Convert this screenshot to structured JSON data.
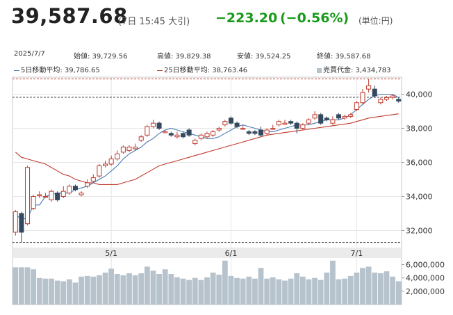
{
  "header": {
    "price": "39,587.68",
    "meta": "(7日 15:45 大引)",
    "change": "−223.20",
    "change_pct": "(−0.56%)",
    "unit": "(単位:円)"
  },
  "stats": {
    "date": "2025/7/7",
    "open": "始値: 39,729.56",
    "high": "高値: 39,829.38",
    "low": "安値: 39,524.25",
    "close": "終値: 39,587.68"
  },
  "legend": {
    "ma5": "5日移動平均: 39,786.65",
    "ma25": "25日移動平均: 38,763.46",
    "volume": "売買代金: 3,434,783"
  },
  "colors": {
    "up": "#c0392b",
    "down": "#34495e",
    "ma5": "#4a7ab5",
    "ma25": "#c0392b",
    "volume": "#b6c2cc",
    "change": "#1a9a1a"
  },
  "chart_data": {
    "type": "candlestick",
    "ylim": [
      31000,
      41000
    ],
    "yticks": [
      "32,000",
      "34,000",
      "36,000",
      "38,000",
      "40,000"
    ],
    "ytick_values": [
      32000,
      34000,
      36000,
      38000,
      40000
    ],
    "xticks": [
      {
        "label": "5/1",
        "index": 16
      },
      {
        "label": "6/1",
        "index": 36
      },
      {
        "label": "7/1",
        "index": 57
      }
    ],
    "reference_lines": [
      40900,
      39820,
      31300
    ],
    "candles": [
      [
        31900,
        33100,
        31700,
        33200
      ],
      [
        33000,
        31900,
        31300,
        33100
      ],
      [
        32400,
        35700,
        32300,
        35800
      ],
      [
        33300,
        34000,
        33200,
        34100
      ],
      [
        34100,
        34100,
        33900,
        34300
      ],
      [
        34000,
        34000,
        33900,
        34200
      ],
      [
        33800,
        34300,
        33700,
        34400
      ],
      [
        34200,
        33800,
        33700,
        34300
      ],
      [
        34000,
        34300,
        33900,
        34600
      ],
      [
        34200,
        34600,
        34100,
        34700
      ],
      [
        34600,
        34400,
        34300,
        34700
      ],
      [
        34100,
        34200,
        34000,
        34300
      ],
      [
        34600,
        34800,
        34500,
        35000
      ],
      [
        34900,
        35100,
        34800,
        35300
      ],
      [
        35200,
        35800,
        35100,
        35900
      ],
      [
        35800,
        35900,
        35700,
        36100
      ],
      [
        35900,
        36200,
        35800,
        36400
      ],
      [
        36200,
        36500,
        36100,
        36700
      ],
      [
        36600,
        36900,
        36500,
        37000
      ],
      [
        36700,
        36900,
        36600,
        37000
      ],
      [
        36800,
        36900,
        36700,
        37100
      ],
      [
        37300,
        37500,
        37200,
        37600
      ],
      [
        37600,
        38100,
        37500,
        38200
      ],
      [
        38100,
        38300,
        38000,
        38500
      ],
      [
        38300,
        38000,
        37900,
        38400
      ],
      [
        37800,
        37800,
        37700,
        37900
      ],
      [
        37700,
        37600,
        37500,
        37800
      ],
      [
        37500,
        37600,
        37400,
        37800
      ],
      [
        37700,
        37500,
        37400,
        37800
      ],
      [
        37900,
        37600,
        37500,
        38000
      ],
      [
        37100,
        37300,
        37000,
        37400
      ],
      [
        37400,
        37600,
        37300,
        37700
      ],
      [
        37500,
        37700,
        37400,
        37800
      ],
      [
        37600,
        37800,
        37500,
        37900
      ],
      [
        37900,
        38000,
        37800,
        38100
      ],
      [
        38200,
        38400,
        38100,
        38500
      ],
      [
        38600,
        38300,
        38200,
        38700
      ],
      [
        38300,
        38100,
        38000,
        38400
      ],
      [
        38000,
        38000,
        37900,
        38200
      ],
      [
        37800,
        37700,
        37600,
        37900
      ],
      [
        37800,
        37700,
        37600,
        37900
      ],
      [
        37900,
        37600,
        37500,
        38100
      ],
      [
        37700,
        37900,
        37600,
        38000
      ],
      [
        38000,
        38000,
        37900,
        38200
      ],
      [
        38200,
        38400,
        38100,
        38500
      ],
      [
        38300,
        38300,
        38200,
        38500
      ],
      [
        38400,
        38300,
        38200,
        38500
      ],
      [
        38300,
        38000,
        37700,
        38400
      ],
      [
        38000,
        38200,
        37900,
        38300
      ],
      [
        38300,
        38500,
        38200,
        38600
      ],
      [
        38600,
        38800,
        38500,
        39000
      ],
      [
        38800,
        38300,
        38200,
        38900
      ],
      [
        38600,
        38500,
        38400,
        38700
      ],
      [
        38300,
        38500,
        38200,
        38700
      ],
      [
        38800,
        38600,
        38500,
        38900
      ],
      [
        38600,
        38700,
        38500,
        38800
      ],
      [
        38700,
        38800,
        38600,
        38900
      ],
      [
        39100,
        39500,
        39000,
        39600
      ],
      [
        39500,
        40100,
        39400,
        40300
      ],
      [
        40300,
        40500,
        40100,
        40900
      ],
      [
        40300,
        39900,
        39800,
        40500
      ],
      [
        39500,
        39700,
        39400,
        39800
      ],
      [
        39700,
        39800,
        39600,
        39900
      ],
      [
        39800,
        39900,
        39700,
        40000
      ],
      [
        39700,
        39600,
        39500,
        39800
      ]
    ],
    "ma5": [
      32900,
      32700,
      32700,
      33500,
      33500,
      34000,
      34100,
      34200,
      34200,
      34200,
      34400,
      34500,
      34600,
      34800,
      35000,
      35200,
      35500,
      35800,
      36200,
      36500,
      36700,
      36900,
      37200,
      37400,
      37700,
      37900,
      38000,
      37900,
      37800,
      37700,
      37600,
      37500,
      37400,
      37400,
      37500,
      37700,
      37900,
      38100,
      38200,
      38100,
      38000,
      37900,
      37800,
      37800,
      37900,
      38000,
      38100,
      38200,
      38200,
      38200,
      38300,
      38400,
      38500,
      38500,
      38500,
      38600,
      38800,
      39100,
      39400,
      39700,
      39900,
      40000,
      40000,
      40000,
      39800
    ],
    "ma25": [
      36600,
      36300,
      36200,
      36100,
      36000,
      35900,
      35700,
      35500,
      35300,
      35200,
      35000,
      34900,
      34800,
      34800,
      34700,
      34700,
      34700,
      34700,
      34800,
      34900,
      35000,
      35200,
      35400,
      35600,
      35800,
      35900,
      36000,
      36100,
      36200,
      36300,
      36400,
      36500,
      36600,
      36700,
      36800,
      36900,
      37000,
      37100,
      37200,
      37300,
      37400,
      37500,
      37600,
      37650,
      37700,
      37750,
      37800,
      37850,
      37900,
      37950,
      38000,
      38050,
      38100,
      38150,
      38200,
      38250,
      38300,
      38400,
      38500,
      38600,
      38650,
      38700,
      38750,
      38800,
      38850
    ],
    "volume_ylim": [
      0,
      7000000
    ],
    "volume_ticks": [
      "2,000,000",
      "4,000,000",
      "6,000,000"
    ],
    "volume_tick_values": [
      2000000,
      4000000,
      6000000
    ],
    "volume": [
      5600000,
      5600000,
      5600000,
      5300000,
      4000000,
      3900000,
      3900000,
      3600000,
      3500000,
      3800000,
      3300000,
      4200000,
      4300000,
      4200000,
      4400000,
      4800000,
      5400000,
      4600000,
      4400000,
      4700000,
      4400000,
      4700000,
      5700000,
      5100000,
      4600000,
      5300000,
      4600000,
      4100000,
      3900000,
      3700000,
      4000000,
      3700000,
      4100000,
      4800000,
      4500000,
      6600000,
      4300000,
      4000000,
      3900000,
      4200000,
      3900000,
      5500000,
      3900000,
      4100000,
      3800000,
      3600000,
      3900000,
      4700000,
      4200000,
      3800000,
      4000000,
      3700000,
      4800000,
      6600000,
      3800000,
      3900000,
      4300000,
      4800000,
      5500000,
      5700000,
      4800000,
      4700000,
      5000000,
      4200000,
      3500000
    ]
  }
}
